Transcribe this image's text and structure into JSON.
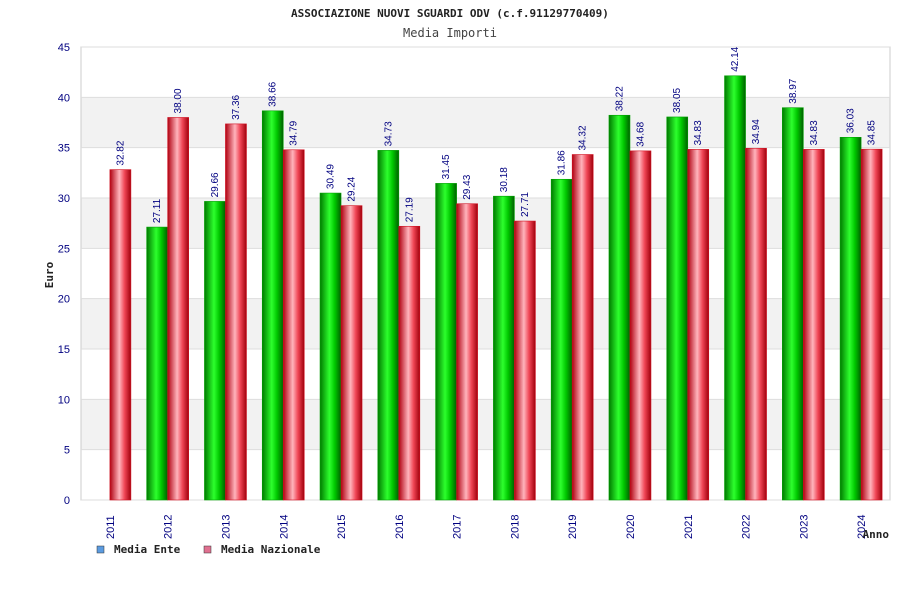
{
  "chart_data": {
    "type": "bar",
    "title": "ASSOCIAZIONE NUOVI SGUARDI ODV (c.f.91129770409)",
    "subtitle": "Media Importi",
    "xlabel": "Anno",
    "ylabel": "Euro",
    "ylim": [
      0,
      45
    ],
    "yticks": [
      0,
      5,
      10,
      15,
      20,
      25,
      30,
      35,
      40,
      45
    ],
    "categories": [
      "2011",
      "2012",
      "2013",
      "2014",
      "2015",
      "2016",
      "2017",
      "2018",
      "2019",
      "2020",
      "2021",
      "2022",
      "2023",
      "2024"
    ],
    "series": [
      {
        "name": "Media Ente",
        "values": [
          null,
          27.11,
          29.66,
          38.66,
          30.49,
          34.73,
          31.45,
          30.18,
          31.86,
          38.22,
          38.05,
          42.14,
          38.97,
          36.03
        ],
        "labels": [
          "",
          "27.11",
          "29.66",
          "38.66",
          "30.49",
          "34.73",
          "31.45",
          "30.18",
          "31.86",
          "38.22",
          "38.05",
          "42.14",
          "38.97",
          "36.03"
        ]
      },
      {
        "name": "Media Nazionale",
        "values": [
          32.82,
          38.0,
          37.36,
          34.79,
          29.24,
          27.19,
          29.43,
          27.71,
          34.32,
          34.68,
          34.83,
          34.94,
          34.83,
          34.85
        ],
        "labels": [
          "32.82",
          "38.00",
          "37.36",
          "34.79",
          "29.24",
          "27.19",
          "29.43",
          "27.71",
          "34.32",
          "34.68",
          "34.83",
          "34.94",
          "34.83",
          "34.85"
        ]
      }
    ],
    "grid": true,
    "legend_position": "bottom-left",
    "colors": {
      "ente_bar": "#00c000",
      "nazionale_bar": "#e0303c",
      "ente_legend": "#5b9be0",
      "nazionale_legend": "#e07090",
      "tick_text": "#000080",
      "band": "#f2f2f2"
    }
  }
}
